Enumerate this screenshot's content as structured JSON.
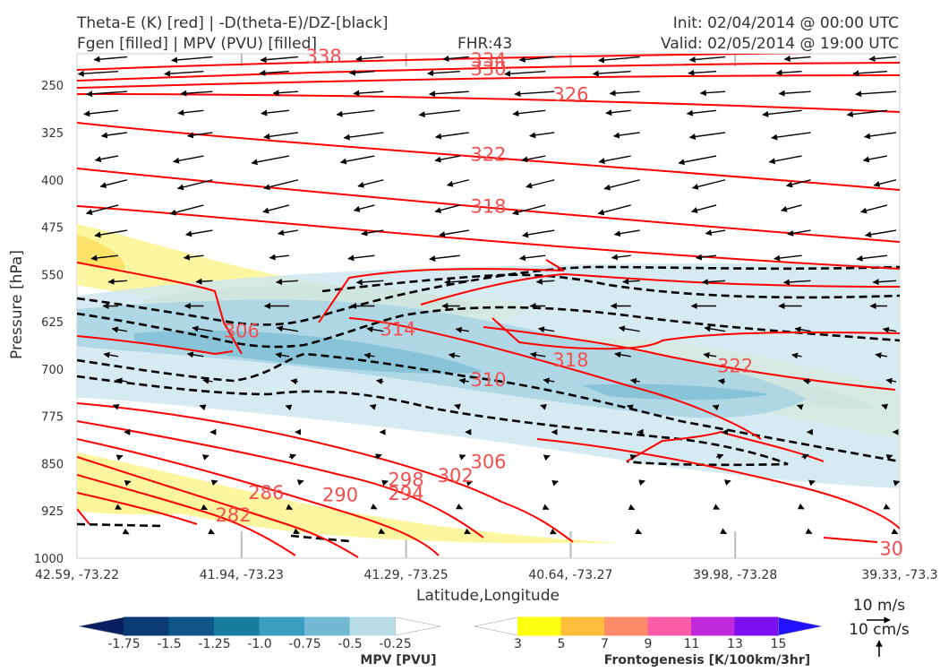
{
  "header": {
    "title_line1": "Theta-E (K) [red] | -D(theta-E)/DZ-[black]",
    "title_line2": "Fgen [filled] | MPV (PVU) [filled]",
    "fhr": "FHR:43",
    "init": "Init: 02/04/2014 @ 00:00 UTC",
    "valid": "Valid: 02/05/2014 @ 19:00 UTC"
  },
  "chart_data": {
    "type": "cross-section",
    "xlabel": "Latitude,Longitude",
    "ylabel": "Pressure [hPa]",
    "x_ticks": [
      "42.59, -73.22",
      "41.94, -73.23",
      "41.29, -73.25",
      "40.64, -73.27",
      "39.98, -73.28",
      "39.33, -73.3"
    ],
    "y_ticks": [
      250,
      325,
      400,
      475,
      550,
      625,
      700,
      775,
      850,
      925,
      1000
    ],
    "ylim": [
      1000,
      200
    ],
    "y_axis_inverted": true,
    "grid": true,
    "theta_e_contours": [
      {
        "value": "338",
        "label_x": 0.3,
        "label_p": 204
      },
      {
        "value": "334",
        "label_x": 0.5,
        "label_p": 210
      },
      {
        "value": "330",
        "label_x": 0.5,
        "label_p": 224
      },
      {
        "value": "326",
        "label_x": 0.6,
        "label_p": 265
      },
      {
        "value": "322",
        "label_x": 0.5,
        "label_p": 360
      },
      {
        "value": "318",
        "label_x": 0.5,
        "label_p": 442
      },
      {
        "value": "314",
        "label_x": 0.39,
        "label_p": 637
      },
      {
        "value": "310",
        "label_x": 0.5,
        "label_p": 717
      },
      {
        "value": "306",
        "label_x": 0.2,
        "label_p": 640
      },
      {
        "value": "318",
        "label_x": 0.6,
        "label_p": 686
      },
      {
        "value": "322",
        "label_x": 0.8,
        "label_p": 695
      },
      {
        "value": "306",
        "label_x": 0.5,
        "label_p": 847
      },
      {
        "value": "302",
        "label_x": 0.46,
        "label_p": 869
      },
      {
        "value": "298",
        "label_x": 0.4,
        "label_p": 876
      },
      {
        "value": "294",
        "label_x": 0.4,
        "label_p": 898
      },
      {
        "value": "290",
        "label_x": 0.32,
        "label_p": 900
      },
      {
        "value": "286",
        "label_x": 0.23,
        "label_p": 896
      },
      {
        "value": "282",
        "label_x": 0.19,
        "label_p": 932
      },
      {
        "value": "30",
        "label_x": 0.99,
        "label_p": 985
      }
    ],
    "mpv_colorbar": {
      "label": "MPV [PVU]",
      "ticks": [
        "-1.75",
        "-1.5",
        "-1.25",
        "-1.0",
        "-0.75",
        "-0.5",
        "-0.25"
      ],
      "colors": [
        "#08205f",
        "#0c3b74",
        "#0f5688",
        "#167d9e",
        "#3a9ec0",
        "#73b8d2",
        "#b7dce6",
        "#ffffff"
      ]
    },
    "fgen_colorbar": {
      "label": "Frontogenesis [K/100km/3hr]",
      "ticks": [
        "3",
        "5",
        "7",
        "9",
        "11",
        "13",
        "15"
      ],
      "colors": [
        "#ffffff",
        "#ffff11",
        "#ffbe3a",
        "#fe8a6a",
        "#fb5aa4",
        "#c129dc",
        "#7d10f0",
        "#2411ff"
      ]
    },
    "vector_keys": [
      "10 m/s",
      "10 cm/s"
    ]
  },
  "colors": {
    "theta_e": "#ff0000",
    "theta_e_label": "#f05050",
    "stability": "#000000",
    "mpv_light": "#cfe6ee",
    "mpv_mid": "#a3cfe0",
    "fgen_yellow": "#fbf69a",
    "fgen_green": "#c2d98a"
  }
}
